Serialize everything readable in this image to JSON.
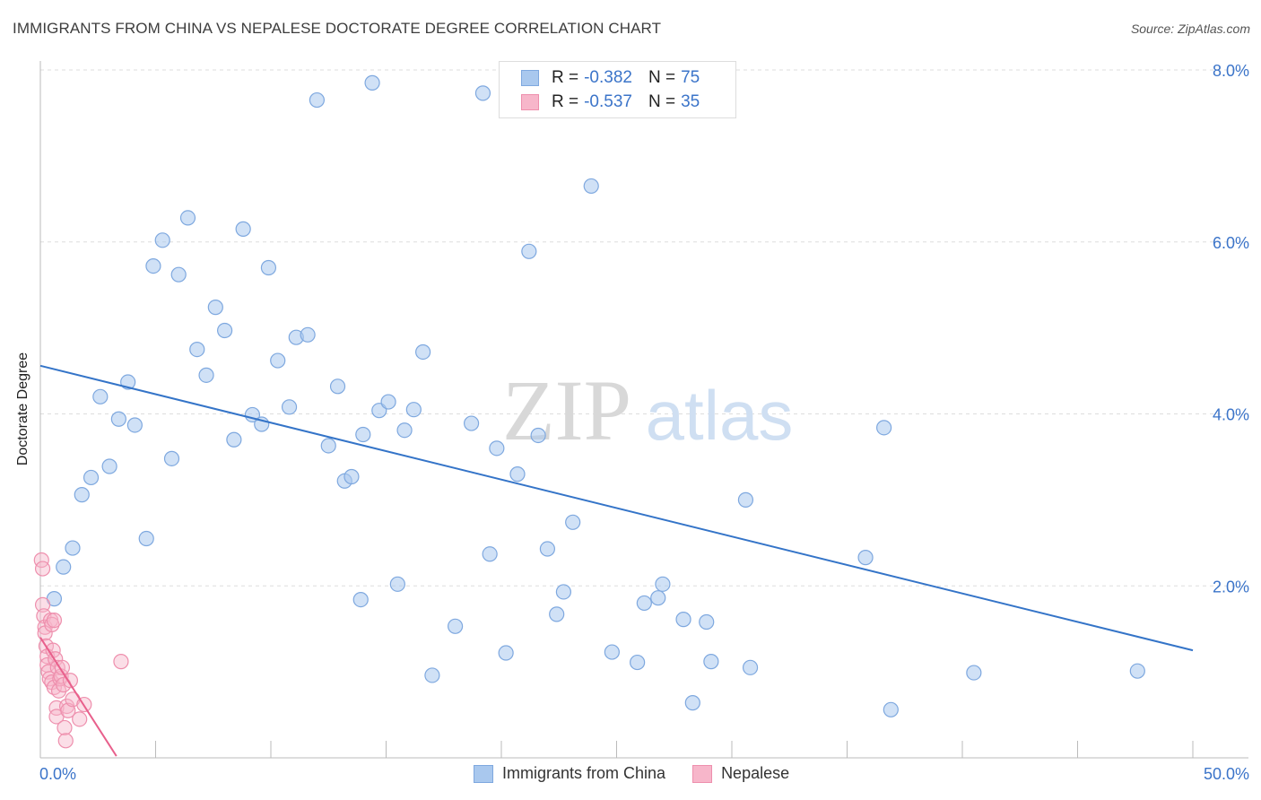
{
  "header": {
    "title": "IMMIGRANTS FROM CHINA VS NEPALESE DOCTORATE DEGREE CORRELATION CHART",
    "source": "Source: ZipAtlas.com"
  },
  "watermark": {
    "zip": "ZIP",
    "atlas": "atlas"
  },
  "legend": {
    "rows": [
      {
        "r_label": "R =",
        "r_value": "-0.382",
        "n_label": "N =",
        "n_value": "75"
      },
      {
        "r_label": "R =",
        "r_value": "-0.537",
        "n_label": "N =",
        "n_value": "35"
      }
    ]
  },
  "bottom_legend": {
    "china": "Immigrants from China",
    "nepalese": "Nepalese"
  },
  "colors": {
    "china_fill": "#a9c8ee",
    "china_stroke": "#7ea8df",
    "china_line": "#3474c8",
    "nepal_fill": "#f7b6ca",
    "nepal_stroke": "#ee8fad",
    "nepal_line": "#e8608c",
    "axis_text": "#3b74c9",
    "grid": "#dddddd"
  },
  "chart_data": {
    "type": "scatter",
    "title": "IMMIGRANTS FROM CHINA VS NEPALESE DOCTORATE DEGREE CORRELATION CHART",
    "xlabel": "",
    "ylabel": "Doctorate Degree",
    "xlim": [
      0,
      50
    ],
    "ylim": [
      0,
      8
    ],
    "x_tick_labels": [
      "0.0%",
      "50.0%"
    ],
    "y_ticks": [
      2,
      4,
      6,
      8
    ],
    "y_tick_labels": [
      "2.0%",
      "4.0%",
      "6.0%",
      "8.0%"
    ],
    "grid": true,
    "series": [
      {
        "name": "Immigrants from China",
        "r": -0.382,
        "n": 75,
        "trend": {
          "x": [
            0,
            50
          ],
          "y": [
            4.56,
            1.25
          ]
        },
        "points": [
          [
            0.6,
            1.85
          ],
          [
            1.0,
            2.22
          ],
          [
            1.4,
            2.44
          ],
          [
            1.8,
            3.06
          ],
          [
            2.2,
            3.26
          ],
          [
            2.6,
            4.2
          ],
          [
            3.0,
            3.39
          ],
          [
            3.4,
            3.94
          ],
          [
            3.8,
            4.37
          ],
          [
            4.1,
            3.87
          ],
          [
            4.6,
            2.55
          ],
          [
            4.9,
            5.72
          ],
          [
            5.3,
            6.02
          ],
          [
            5.7,
            3.48
          ],
          [
            6.0,
            5.62
          ],
          [
            6.4,
            6.28
          ],
          [
            6.8,
            4.75
          ],
          [
            7.2,
            4.45
          ],
          [
            7.6,
            5.24
          ],
          [
            8.0,
            4.97
          ],
          [
            8.4,
            3.7
          ],
          [
            8.8,
            6.15
          ],
          [
            9.2,
            3.99
          ],
          [
            9.6,
            3.88
          ],
          [
            9.9,
            5.7
          ],
          [
            10.3,
            4.62
          ],
          [
            10.8,
            4.08
          ],
          [
            11.1,
            4.89
          ],
          [
            11.6,
            4.92
          ],
          [
            12.0,
            7.65
          ],
          [
            12.5,
            3.63
          ],
          [
            12.9,
            4.32
          ],
          [
            13.2,
            3.22
          ],
          [
            13.5,
            3.27
          ],
          [
            14.0,
            3.76
          ],
          [
            14.4,
            7.85
          ],
          [
            14.7,
            4.04
          ],
          [
            15.1,
            4.14
          ],
          [
            15.5,
            2.02
          ],
          [
            15.8,
            3.81
          ],
          [
            16.2,
            4.05
          ],
          [
            16.6,
            4.72
          ],
          [
            17.0,
            0.96
          ],
          [
            18.0,
            1.53
          ],
          [
            18.7,
            3.89
          ],
          [
            19.2,
            7.73
          ],
          [
            19.5,
            2.37
          ],
          [
            19.8,
            3.6
          ],
          [
            20.2,
            1.22
          ],
          [
            20.7,
            3.3
          ],
          [
            21.2,
            5.89
          ],
          [
            21.6,
            3.75
          ],
          [
            22.0,
            2.43
          ],
          [
            22.4,
            1.67
          ],
          [
            22.7,
            1.93
          ],
          [
            23.1,
            2.74
          ],
          [
            23.9,
            6.65
          ],
          [
            24.8,
            1.23
          ],
          [
            25.9,
            1.11
          ],
          [
            26.2,
            1.8
          ],
          [
            26.8,
            1.86
          ],
          [
            27.0,
            2.02
          ],
          [
            27.9,
            1.61
          ],
          [
            28.3,
            0.64
          ],
          [
            28.9,
            1.58
          ],
          [
            29.1,
            1.12
          ],
          [
            29.8,
            7.93
          ],
          [
            30.6,
            3.0
          ],
          [
            30.8,
            1.05
          ],
          [
            35.8,
            2.33
          ],
          [
            36.6,
            3.84
          ],
          [
            36.9,
            0.56
          ],
          [
            40.5,
            0.99
          ],
          [
            47.6,
            1.01
          ],
          [
            13.9,
            1.84
          ]
        ]
      },
      {
        "name": "Nepalese",
        "r": -0.537,
        "n": 35,
        "trend": {
          "x": [
            0,
            3.3
          ],
          "y": [
            1.4,
            0.02
          ]
        },
        "points": [
          [
            0.05,
            2.3
          ],
          [
            0.1,
            2.2
          ],
          [
            0.1,
            1.78
          ],
          [
            0.15,
            1.65
          ],
          [
            0.2,
            1.52
          ],
          [
            0.2,
            1.45
          ],
          [
            0.25,
            1.3
          ],
          [
            0.3,
            1.18
          ],
          [
            0.3,
            1.08
          ],
          [
            0.35,
            1.0
          ],
          [
            0.4,
            0.92
          ],
          [
            0.45,
            1.6
          ],
          [
            0.5,
            1.55
          ],
          [
            0.5,
            0.88
          ],
          [
            0.55,
            1.25
          ],
          [
            0.6,
            1.6
          ],
          [
            0.6,
            0.82
          ],
          [
            0.65,
            1.15
          ],
          [
            0.7,
            0.58
          ],
          [
            0.7,
            0.48
          ],
          [
            0.75,
            1.05
          ],
          [
            0.8,
            0.78
          ],
          [
            0.85,
            0.92
          ],
          [
            0.9,
            0.95
          ],
          [
            0.95,
            1.05
          ],
          [
            1.0,
            0.85
          ],
          [
            1.05,
            0.35
          ],
          [
            1.1,
            0.2
          ],
          [
            1.15,
            0.6
          ],
          [
            1.2,
            0.55
          ],
          [
            1.3,
            0.9
          ],
          [
            1.4,
            0.68
          ],
          [
            1.7,
            0.45
          ],
          [
            1.9,
            0.62
          ],
          [
            3.5,
            1.12
          ]
        ]
      }
    ]
  }
}
